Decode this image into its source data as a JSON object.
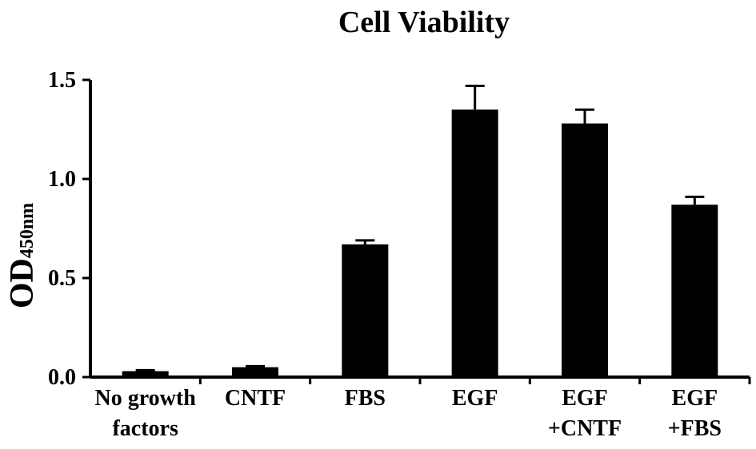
{
  "chart_data": {
    "type": "bar",
    "title": "Cell Viability",
    "ylabel": {
      "main": "OD",
      "subscript": "450nm"
    },
    "xlabel": "",
    "categories": [
      [
        "No growth",
        "factors"
      ],
      [
        "CNTF"
      ],
      [
        "FBS"
      ],
      [
        "EGF"
      ],
      [
        "EGF",
        "+CNTF"
      ],
      [
        "EGF",
        "+FBS"
      ]
    ],
    "values": [
      0.03,
      0.05,
      0.67,
      1.35,
      1.28,
      0.87
    ],
    "errors": [
      0.005,
      0.005,
      0.02,
      0.12,
      0.07,
      0.04
    ],
    "ylim": [
      0,
      1.5
    ],
    "yticks": [
      "0.0",
      "0.5",
      "1.0",
      "1.5"
    ],
    "bar_color": "#000000",
    "grid": false
  }
}
